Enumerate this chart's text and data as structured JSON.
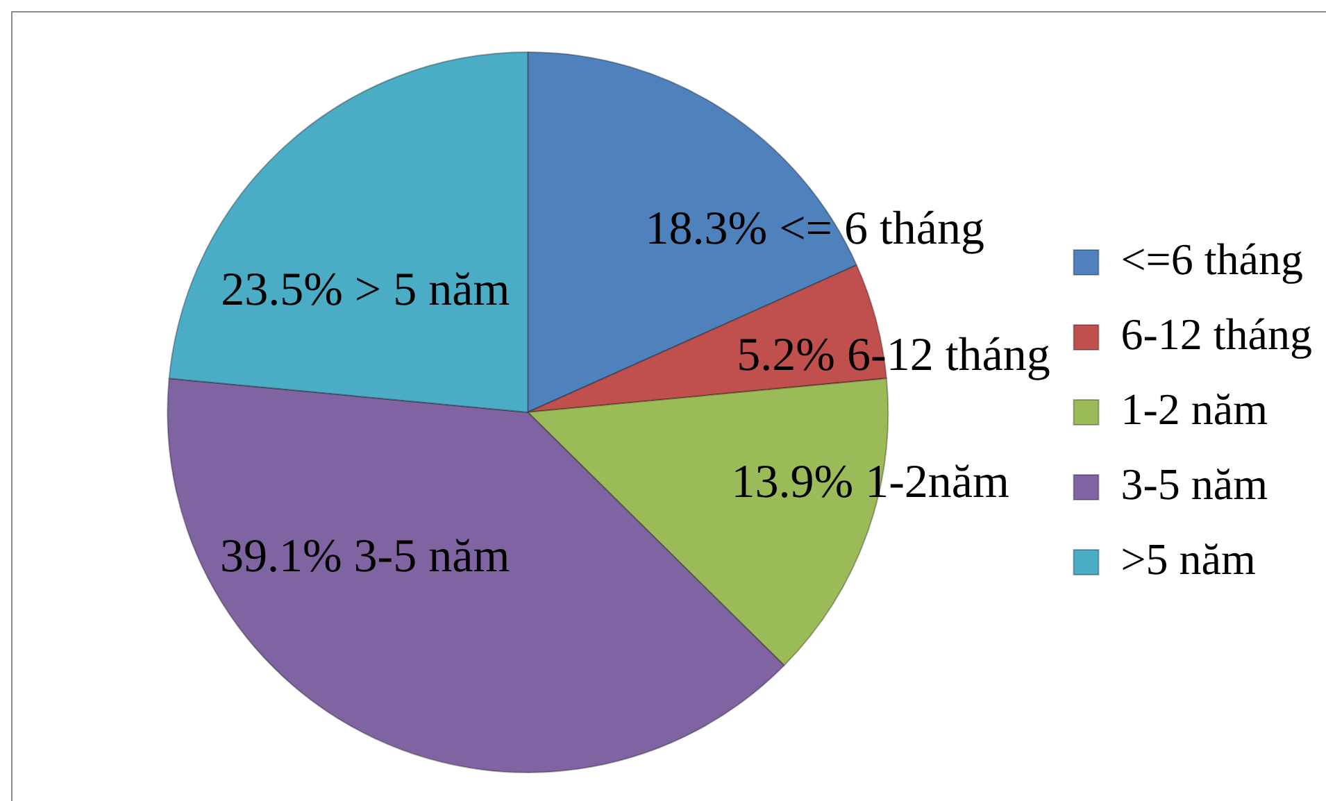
{
  "chart_data": {
    "type": "pie",
    "categories": [
      "<=6 tháng",
      "6-12 tháng",
      "1-2 năm",
      "3-5 năm",
      ">5 năm"
    ],
    "values": [
      18.3,
      5.2,
      13.9,
      39.1,
      23.5
    ],
    "colors": [
      "#4f81bd",
      "#c0504d",
      "#9bbb59",
      "#8064a2",
      "#4bacc6"
    ],
    "value_labels": [
      "18.3% <= 6 tháng",
      "5.2% 6-12 tháng",
      "13.9% 1-2năm",
      "39.1% 3-5 năm",
      "23.5% > 5 năm"
    ],
    "legend": "right"
  }
}
